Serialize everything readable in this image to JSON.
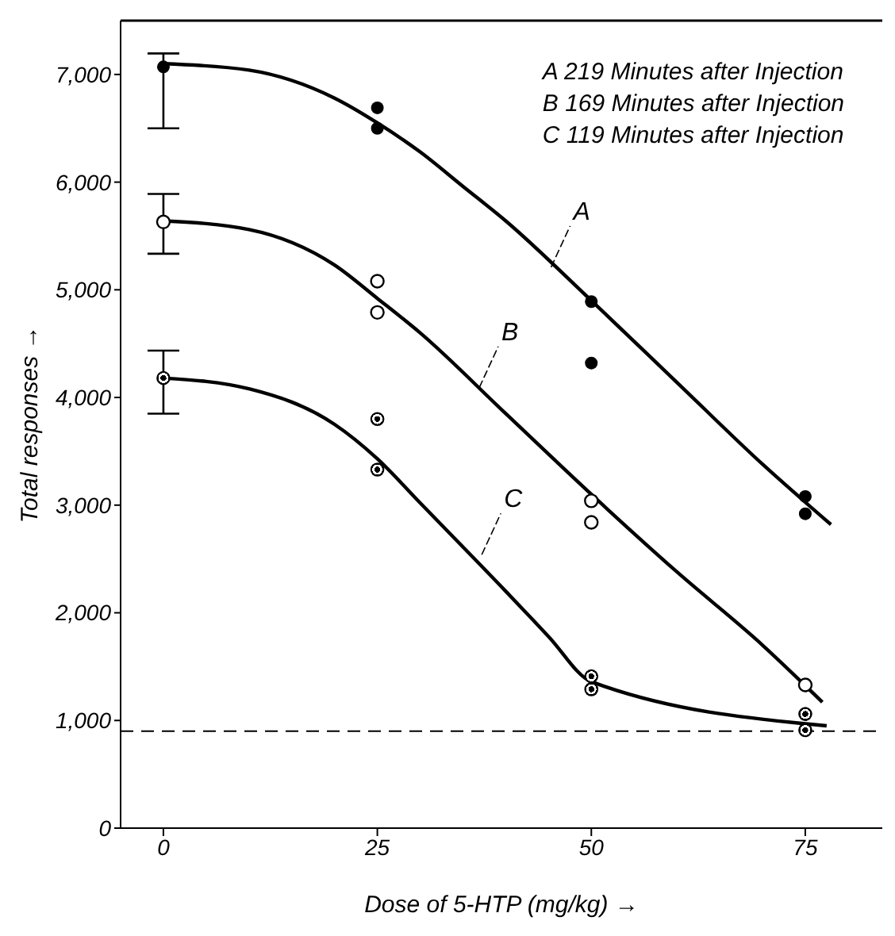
{
  "chart_data": {
    "type": "scatter",
    "xlabel": "Dose of 5-HTP (mg/kg) →",
    "ylabel": "Total responses →",
    "xlim": [
      -5,
      84
    ],
    "xticks": [
      0,
      25,
      50,
      75
    ],
    "ylim": [
      0,
      7500
    ],
    "yticks": [
      0,
      {
        "value": 1000,
        "label": "1,000"
      },
      {
        "value": 2000,
        "label": "2,000"
      },
      {
        "value": 3000,
        "label": "3,000"
      },
      {
        "value": 4000,
        "label": "4,000"
      },
      {
        "value": 5000,
        "label": "5,000"
      },
      {
        "value": 6000,
        "label": "6,000"
      },
      {
        "value": 7000,
        "label": "7,000"
      }
    ],
    "marker": "circle",
    "series": [
      {
        "color": "#000000",
        "x": [
          0,
          25,
          25,
          50,
          50,
          75,
          75
        ],
        "values": [
          7070,
          6690,
          6500,
          4890,
          4320,
          3080,
          2920
        ],
        "errors": [
          [
            6500,
            7195
          ],
          null,
          null,
          null,
          null,
          null,
          null
        ]
      },
      {
        "color": "#000000",
        "x": [
          0,
          25,
          25,
          50,
          50,
          75
        ],
        "values": [
          5630,
          5080,
          4790,
          3040,
          2840,
          1330
        ],
        "errors": [
          [
            5335,
            5890
          ],
          null,
          null,
          null,
          null,
          null
        ]
      },
      {
        "color": "#000000",
        "x": [
          0,
          25,
          25,
          50,
          50,
          75,
          75
        ],
        "values": [
          4180,
          3800,
          3330,
          1410,
          1290,
          1060,
          910
        ],
        "errors": [
          [
            3850,
            4435
          ],
          null,
          null,
          null,
          null,
          null,
          null
        ]
      },
      {
        "type": "line",
        "marker": "none",
        "color": "#000000",
        "x": [
          0,
          10,
          20,
          25,
          30,
          35,
          40,
          50,
          60,
          70,
          78
        ],
        "values": [
          7100,
          7040,
          6780,
          6550,
          6280,
          5960,
          5640,
          4900,
          4140,
          3380,
          2820
        ]
      },
      {
        "type": "line",
        "marker": "none",
        "color": "#000000",
        "x": [
          0,
          10,
          20,
          25,
          30,
          40,
          50,
          60,
          70,
          77
        ],
        "values": [
          5640,
          5560,
          5230,
          4920,
          4600,
          3850,
          3100,
          2380,
          1700,
          1170
        ]
      },
      {
        "type": "line",
        "marker": "none",
        "color": "#000000",
        "x": [
          0,
          10,
          20,
          25,
          30,
          40,
          45,
          50,
          77.5
        ],
        "values": [
          4180,
          4080,
          3750,
          3430,
          3020,
          2200,
          1780,
          1360,
          950
        ]
      }
    ],
    "ref_lines": [
      {
        "axis": "y",
        "value": 900,
        "label": null,
        "line_style": "dashed",
        "color": "#000000"
      }
    ],
    "annotations": [
      "A 219 Minutes after Injection",
      "B 169 Minutes after Injection",
      "C 119 Minutes after Injection",
      {
        "text": "A",
        "x": 45.3,
        "y": 5210
      },
      {
        "text": "B",
        "x": 36.9,
        "y": 4090
      },
      {
        "text": "C",
        "x": 37.2,
        "y": 2540
      }
    ]
  }
}
